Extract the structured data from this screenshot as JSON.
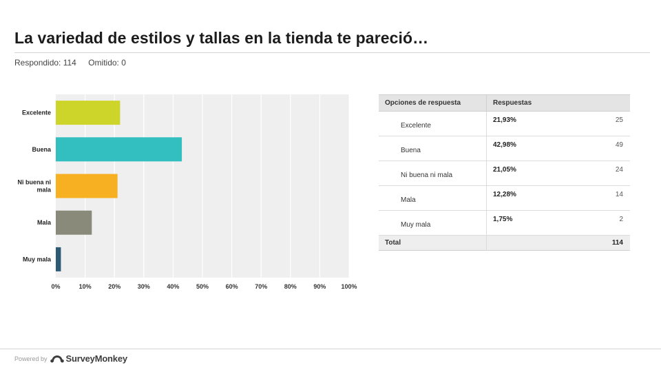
{
  "header": {
    "title": "La variedad de estilos y tallas en la tienda te pareció…",
    "answered": "Respondido: 114",
    "skipped": "Omitido: 0"
  },
  "table": {
    "col_options": "Opciones de respuesta",
    "col_responses": "Respuestas",
    "rows": [
      {
        "label": "Excelente",
        "pct": "21,93%",
        "count": "25"
      },
      {
        "label": "Buena",
        "pct": "42,98%",
        "count": "49"
      },
      {
        "label": "Ni buena ni mala",
        "pct": "21,05%",
        "count": "24"
      },
      {
        "label": "Mala",
        "pct": "12,28%",
        "count": "14"
      },
      {
        "label": "Muy mala",
        "pct": "1,75%",
        "count": "2"
      }
    ],
    "total_label": "Total",
    "total_count": "114"
  },
  "footer": {
    "powered_by": "Powered by",
    "brand": "SurveyMonkey"
  },
  "chart_data": {
    "type": "bar",
    "orientation": "horizontal",
    "categories": [
      "Excelente",
      "Buena",
      "Ni buena ni mala",
      "Mala",
      "Muy mala"
    ],
    "values": [
      21.93,
      42.98,
      21.05,
      12.28,
      1.75
    ],
    "colors": [
      "#cdd52b",
      "#33bfc0",
      "#f6b022",
      "#8a8a7a",
      "#2e5b74"
    ],
    "xlim": [
      0,
      100
    ],
    "xticks": [
      "0%",
      "10%",
      "20%",
      "30%",
      "40%",
      "50%",
      "60%",
      "70%",
      "80%",
      "90%",
      "100%"
    ],
    "grid": true,
    "legend": "none"
  }
}
